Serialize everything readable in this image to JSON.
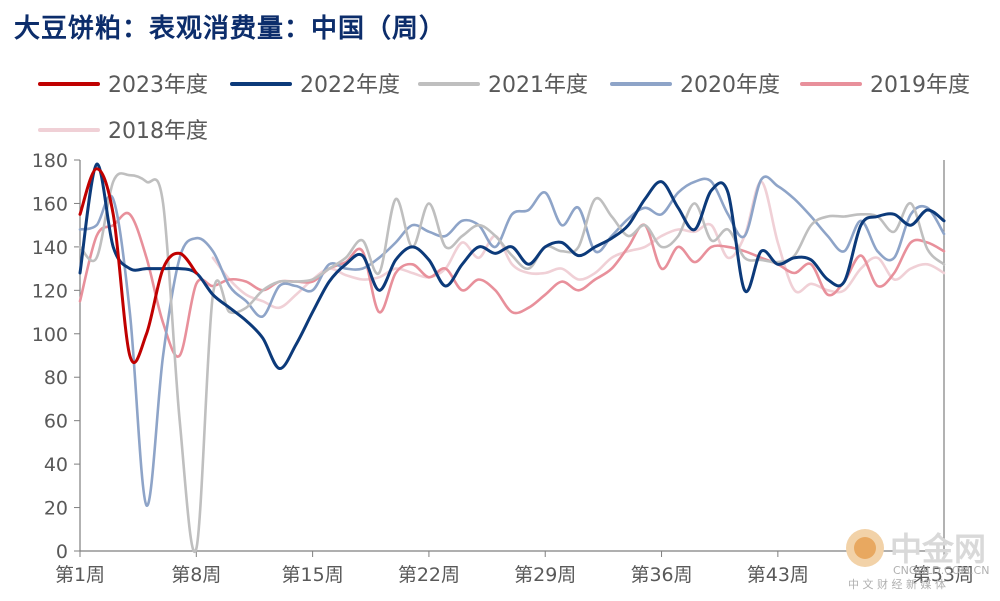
{
  "chart_data": {
    "type": "line",
    "title": "大豆饼粕：表观消费量：中国（周）",
    "ylim": [
      0,
      180
    ],
    "yticks": [
      0,
      20,
      40,
      60,
      80,
      100,
      120,
      140,
      160,
      180
    ],
    "xlim": [
      1,
      53
    ],
    "xticks": [
      {
        "label": "第1周",
        "week": 1
      },
      {
        "label": "第8周",
        "week": 8
      },
      {
        "label": "第15周",
        "week": 15
      },
      {
        "label": "第22周",
        "week": 22
      },
      {
        "label": "第29周",
        "week": 29
      },
      {
        "label": "第36周",
        "week": 36
      },
      {
        "label": "第43周",
        "week": 43
      },
      {
        "label": "第53周",
        "week": 53
      }
    ],
    "legend_position": "top",
    "series": [
      {
        "name": "2023年度",
        "color": "#c00000",
        "x": [
          1,
          2,
          3,
          4,
          5,
          6,
          7,
          8
        ],
        "values": [
          155,
          176,
          155,
          90,
          100,
          130,
          137,
          128
        ]
      },
      {
        "name": "2022年度",
        "color": "#0c3a7a",
        "x": [
          1,
          2,
          3,
          4,
          5,
          6,
          7,
          8,
          9,
          10,
          11,
          12,
          13,
          14,
          15,
          16,
          17,
          18,
          19,
          20,
          21,
          22,
          23,
          24,
          25,
          26,
          27,
          28,
          29,
          30,
          31,
          32,
          33,
          34,
          35,
          36,
          37,
          38,
          39,
          40,
          41,
          42,
          43,
          44,
          45,
          46,
          47,
          48,
          49,
          50,
          51,
          52,
          53
        ],
        "values": [
          128,
          178,
          140,
          130,
          130,
          130,
          130,
          128,
          118,
          112,
          106,
          98,
          84,
          95,
          110,
          124,
          132,
          136,
          120,
          134,
          140,
          134,
          122,
          132,
          140,
          137,
          140,
          132,
          140,
          142,
          136,
          140,
          144,
          150,
          162,
          170,
          158,
          148,
          166,
          165,
          120,
          138,
          132,
          135,
          134,
          125,
          124,
          150,
          154,
          155,
          150,
          157,
          152
        ]
      },
      {
        "name": "2021年度",
        "color": "#bfbfbf",
        "x": [
          1,
          2,
          3,
          4,
          5,
          6,
          7,
          8,
          9,
          10,
          11,
          12,
          13,
          14,
          15,
          16,
          17,
          18,
          19,
          20,
          21,
          22,
          23,
          24,
          25,
          26,
          27,
          28,
          29,
          30,
          31,
          32,
          33,
          34,
          35,
          36,
          37,
          38,
          39,
          40,
          41,
          42,
          43,
          44,
          45,
          46,
          47,
          48,
          49,
          50,
          51,
          52,
          53
        ],
        "values": [
          140,
          135,
          170,
          173,
          170,
          160,
          60,
          1,
          118,
          110,
          112,
          120,
          124,
          124,
          125,
          130,
          135,
          143,
          128,
          162,
          140,
          160,
          140,
          145,
          150,
          145,
          136,
          130,
          140,
          138,
          140,
          162,
          154,
          145,
          150,
          140,
          145,
          160,
          143,
          148,
          135,
          134,
          133,
          136,
          150,
          154,
          154,
          155,
          154,
          147,
          160,
          139,
          132
        ]
      },
      {
        "name": "2020年度",
        "color": "#8ea4c8",
        "x": [
          1,
          2,
          3,
          4,
          5,
          6,
          7,
          8,
          9,
          10,
          11,
          12,
          13,
          14,
          15,
          16,
          17,
          18,
          19,
          20,
          21,
          22,
          23,
          24,
          25,
          26,
          27,
          28,
          29,
          30,
          31,
          32,
          33,
          34,
          35,
          36,
          37,
          38,
          39,
          40,
          41,
          42,
          43,
          44,
          45,
          46,
          47,
          48,
          49,
          50,
          51,
          52,
          53
        ],
        "values": [
          148,
          150,
          162,
          110,
          21,
          90,
          135,
          144,
          138,
          122,
          115,
          108,
          122,
          122,
          120,
          132,
          130,
          130,
          135,
          142,
          150,
          147,
          145,
          152,
          150,
          140,
          155,
          157,
          165,
          150,
          158,
          138,
          145,
          153,
          158,
          155,
          165,
          170,
          170,
          155,
          145,
          171,
          168,
          162,
          154,
          145,
          138,
          152,
          138,
          135,
          155,
          158,
          146
        ]
      },
      {
        "name": "2019年度",
        "color": "#e8909b",
        "x": [
          1,
          2,
          3,
          4,
          5,
          6,
          7,
          8,
          9,
          10,
          11,
          12,
          13,
          14,
          15,
          16,
          17,
          18,
          19,
          20,
          21,
          22,
          23,
          24,
          25,
          26,
          27,
          28,
          29,
          30,
          31,
          32,
          33,
          34,
          35,
          36,
          37,
          38,
          39,
          40,
          41,
          42,
          43,
          44,
          45,
          46,
          47,
          48,
          49,
          50,
          51,
          52,
          53
        ],
        "values": [
          115,
          145,
          150,
          155,
          135,
          105,
          90,
          123,
          122,
          125,
          124,
          120,
          124,
          124,
          124,
          130,
          133,
          138,
          110,
          128,
          132,
          126,
          130,
          120,
          125,
          120,
          110,
          112,
          118,
          124,
          120,
          125,
          130,
          140,
          150,
          130,
          140,
          133,
          140,
          140,
          138,
          135,
          132,
          128,
          132,
          118,
          124,
          136,
          122,
          128,
          142,
          142,
          138
        ]
      },
      {
        "name": "2018年度",
        "color": "#f0d0d6",
        "x": [
          9,
          10,
          11,
          12,
          13,
          14,
          15,
          16,
          17,
          18,
          19,
          20,
          21,
          22,
          23,
          24,
          25,
          26,
          27,
          28,
          29,
          30,
          31,
          32,
          33,
          34,
          35,
          36,
          37,
          38,
          39,
          40,
          41,
          42,
          43,
          44,
          45,
          46,
          47,
          48,
          49,
          50,
          51,
          52,
          53
        ],
        "values": [
          135,
          125,
          118,
          115,
          112,
          118,
          125,
          130,
          127,
          125,
          126,
          130,
          128,
          126,
          130,
          142,
          135,
          145,
          132,
          128,
          128,
          130,
          125,
          128,
          135,
          138,
          140,
          145,
          148,
          147,
          150,
          135,
          145,
          170,
          142,
          120,
          123,
          120,
          120,
          130,
          135,
          125,
          130,
          132,
          128
        ]
      }
    ]
  },
  "watermark": {
    "logo_text": "中金网",
    "sub_text": "中 文 财 经 新 媒 体",
    "url_text": "CNGOLD.COM.CN"
  }
}
